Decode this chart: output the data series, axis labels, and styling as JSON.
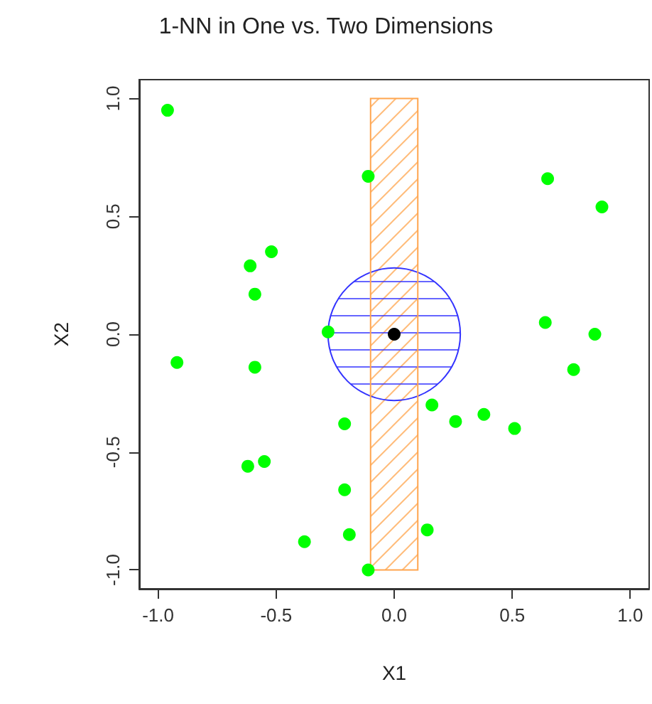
{
  "chart_data": {
    "type": "scatter",
    "title": "1-NN in One vs. Two Dimensions",
    "xlabel": "X1",
    "ylabel": "X2",
    "xlim": [
      -1.08,
      1.08
    ],
    "ylim": [
      -1.08,
      1.08
    ],
    "xticks": [
      {
        "value": -1,
        "label": "-1.0"
      },
      {
        "value": -0.5,
        "label": "-0.5"
      },
      {
        "value": 0,
        "label": "0.0"
      },
      {
        "value": 0.5,
        "label": "0.5"
      },
      {
        "value": 1,
        "label": "1.0"
      }
    ],
    "yticks": [
      {
        "value": -1,
        "label": "-1.0"
      },
      {
        "value": -0.5,
        "label": "-0.5"
      },
      {
        "value": 0,
        "label": "0.0"
      },
      {
        "value": 0.5,
        "label": "0.5"
      },
      {
        "value": 1,
        "label": "1.0"
      }
    ],
    "grid": false,
    "marker": "circle",
    "bands": [
      {
        "axis": "x",
        "from": -0.1,
        "to": 0.1,
        "color": "#ffa54f"
      }
    ],
    "series": [
      {
        "color": "#00ff00",
        "x": [
          -0.96,
          -0.11,
          -0.52,
          -0.61,
          -0.59,
          -0.28,
          0.65,
          0.88,
          0.64,
          0.85,
          -0.92,
          -0.59,
          -0.21,
          -0.62,
          -0.55,
          -0.21,
          -0.19,
          -0.38,
          -0.11,
          0.76,
          0.16,
          0.26,
          0.38,
          0.51,
          0.14
        ],
        "values": [
          0.95,
          0.67,
          0.35,
          0.29,
          0.17,
          0.01,
          0.66,
          0.54,
          0.05,
          0.0,
          -0.12,
          -0.14,
          -0.38,
          -0.56,
          -0.54,
          -0.66,
          -0.85,
          -0.88,
          -1.0,
          -0.15,
          -0.3,
          -0.37,
          -0.34,
          -0.4,
          -0.83
        ]
      },
      {
        "color": "#000000",
        "x": [
          0
        ],
        "values": [
          0
        ]
      }
    ]
  }
}
